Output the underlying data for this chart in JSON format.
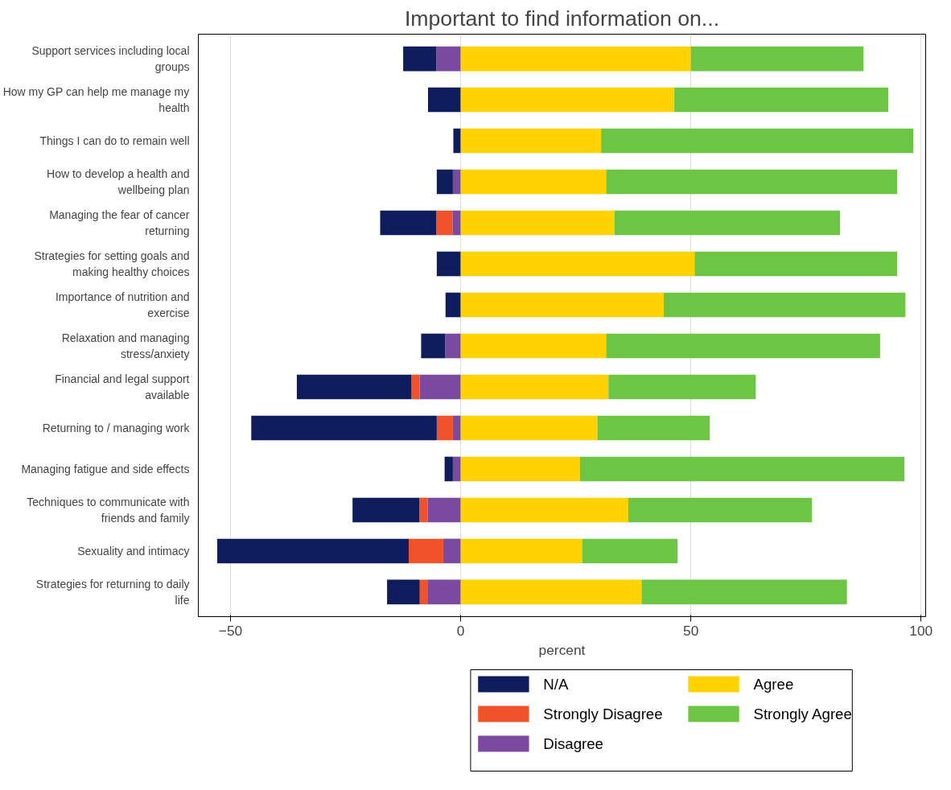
{
  "chart_data": {
    "type": "bar",
    "orientation": "horizontal",
    "stacked": true,
    "title": "Important to find information on...",
    "xlabel": "percent",
    "categories": [
      "Support services including local groups",
      "How my GP can help me manage my health",
      "Things I can do to remain well",
      "How to develop a health and wellbeing plan",
      "Managing the fear of cancer returning",
      "Strategies for setting goals and making healthy choices",
      "Importance of nutrition and exercise",
      "Relaxation and managing stress/anxiety",
      "Financial and legal support available",
      "Returning to / managing work",
      "Managing fatigue and side effects",
      "Techniques to communicate with friends and family",
      "Sexuality and intimacy",
      "Strategies for returning to daily life"
    ],
    "series": [
      {
        "name": "Disagree",
        "color": "#7b4aa0",
        "values": [
          -5.3,
          0,
          0,
          -1.7,
          -1.8,
          0,
          0,
          -3.4,
          -8.9,
          -1.7,
          -1.7,
          -7.2,
          -3.8,
          -7.1
        ]
      },
      {
        "name": "Strongly Disagree",
        "color": "#f0522a",
        "values": [
          0,
          0,
          0,
          0,
          -3.5,
          0,
          0,
          0,
          -1.8,
          -3.5,
          0,
          -1.8,
          -7.5,
          -1.8
        ]
      },
      {
        "name": "N/A",
        "color": "#0f1c5e",
        "values": [
          -7.2,
          -7.1,
          -1.6,
          -3.5,
          -12.2,
          -5.2,
          -3.3,
          -5.2,
          -24.9,
          -40.3,
          -1.8,
          -14.5,
          -41.6,
          -7.1
        ]
      },
      {
        "name": "Agree",
        "color": "#ffd200",
        "values": [
          50.0,
          46.4,
          30.5,
          31.6,
          33.4,
          50.8,
          44.1,
          31.6,
          32.1,
          29.7,
          25.9,
          36.4,
          26.4,
          39.3
        ]
      },
      {
        "name": "Strongly Agree",
        "color": "#6cc644",
        "values": [
          37.5,
          46.5,
          67.8,
          63.2,
          49.0,
          44.0,
          52.5,
          59.5,
          32.0,
          24.4,
          70.5,
          39.9,
          20.7,
          44.6
        ]
      }
    ],
    "xlim": [
      -57,
      101
    ],
    "xticks": [
      -50,
      0,
      50,
      100
    ],
    "grid": "x",
    "legend": "bottom"
  }
}
